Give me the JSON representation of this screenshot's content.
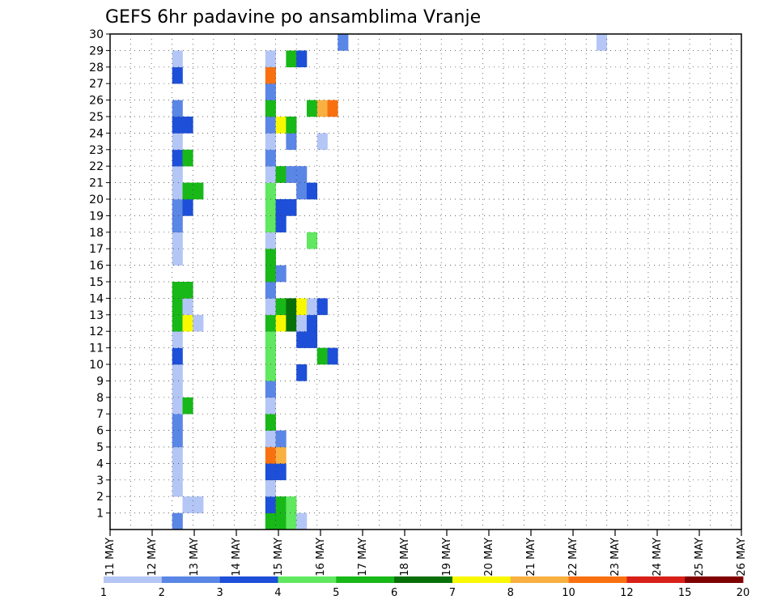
{
  "chart_data": {
    "type": "heatmap",
    "title": "GEFS 6hr padavine po ansamblima Vranje",
    "xlabel": "",
    "ylabel": "",
    "x_tick_labels": [
      "11 MAY",
      "12 MAY",
      "13 MAY",
      "14 MAY",
      "15 MAY",
      "16 MAY",
      "17 MAY",
      "18 MAY",
      "19 MAY",
      "20 MAY",
      "21 MAY",
      "22 MAY",
      "23 MAY",
      "24 MAY",
      "25 MAY",
      "26 MAY"
    ],
    "y_tick_labels": [
      "1",
      "2",
      "3",
      "4",
      "5",
      "6",
      "7",
      "8",
      "9",
      "10",
      "11",
      "12",
      "13",
      "14",
      "15",
      "16",
      "17",
      "18",
      "19",
      "20",
      "21",
      "22",
      "23",
      "24",
      "25",
      "26",
      "27",
      "28",
      "29",
      "30"
    ],
    "ylim": [
      0,
      30
    ],
    "time_steps": 61,
    "grid": "dotted",
    "legend": {
      "placement": "bottom",
      "labels": [
        "1",
        "2",
        "3",
        "4",
        "5",
        "6",
        "7",
        "8",
        "10",
        "12",
        "15",
        "20"
      ],
      "colors": [
        "#b4c6f5",
        "#5a86e6",
        "#1d4fd8",
        "#60e860",
        "#18b818",
        "#087008",
        "#f8f800",
        "#f8b040",
        "#f87010",
        "#d82018",
        "#800000"
      ]
    },
    "rows": {
      "30": [
        [
          22,
          2
        ],
        [
          47,
          1
        ]
      ],
      "29": [
        [
          6,
          1
        ],
        [
          15,
          1
        ],
        [
          17,
          5
        ],
        [
          18,
          3
        ]
      ],
      "28": [
        [
          6,
          3
        ],
        [
          15,
          9
        ]
      ],
      "27": [
        [
          15,
          2
        ]
      ],
      "26": [
        [
          6,
          2
        ],
        [
          15,
          5
        ],
        [
          19,
          5
        ],
        [
          20,
          8
        ],
        [
          21,
          9
        ]
      ],
      "25": [
        [
          6,
          3
        ],
        [
          7,
          3
        ],
        [
          15,
          2
        ],
        [
          16,
          7
        ],
        [
          17,
          5
        ]
      ],
      "24": [
        [
          6,
          1
        ],
        [
          15,
          1
        ],
        [
          17,
          2
        ],
        [
          20,
          1
        ]
      ],
      "23": [
        [
          6,
          3
        ],
        [
          7,
          5
        ],
        [
          15,
          2
        ]
      ],
      "22": [
        [
          6,
          1
        ],
        [
          15,
          1
        ],
        [
          16,
          5
        ],
        [
          17,
          2
        ],
        [
          18,
          2
        ]
      ],
      "21": [
        [
          6,
          1
        ],
        [
          7,
          5
        ],
        [
          8,
          5
        ],
        [
          15,
          4
        ],
        [
          18,
          2
        ],
        [
          19,
          3
        ]
      ],
      "20": [
        [
          6,
          2
        ],
        [
          7,
          3
        ],
        [
          15,
          4
        ],
        [
          16,
          3
        ],
        [
          17,
          3
        ]
      ],
      "19": [
        [
          6,
          2
        ],
        [
          15,
          4
        ],
        [
          16,
          3
        ]
      ],
      "18": [
        [
          6,
          1
        ],
        [
          15,
          1
        ],
        [
          19,
          4
        ]
      ],
      "17": [
        [
          6,
          1
        ],
        [
          15,
          5
        ]
      ],
      "16": [
        [
          15,
          5
        ],
        [
          16,
          2
        ]
      ],
      "15": [
        [
          6,
          5
        ],
        [
          7,
          5
        ],
        [
          15,
          2
        ]
      ],
      "14": [
        [
          6,
          5
        ],
        [
          7,
          1
        ],
        [
          15,
          1
        ],
        [
          16,
          5
        ],
        [
          17,
          6
        ],
        [
          18,
          7
        ],
        [
          19,
          1
        ],
        [
          20,
          3
        ]
      ],
      "13": [
        [
          6,
          5
        ],
        [
          7,
          7
        ],
        [
          8,
          1
        ],
        [
          15,
          5
        ],
        [
          16,
          7
        ],
        [
          17,
          6
        ],
        [
          18,
          1
        ],
        [
          19,
          3
        ]
      ],
      "12": [
        [
          6,
          1
        ],
        [
          15,
          4
        ],
        [
          18,
          3
        ],
        [
          19,
          3
        ]
      ],
      "11": [
        [
          6,
          3
        ],
        [
          15,
          4
        ],
        [
          20,
          5
        ],
        [
          21,
          3
        ]
      ],
      "10": [
        [
          6,
          1
        ],
        [
          15,
          4
        ],
        [
          18,
          3
        ]
      ],
      "9": [
        [
          6,
          1
        ],
        [
          15,
          2
        ]
      ],
      "8": [
        [
          6,
          1
        ],
        [
          7,
          5
        ],
        [
          15,
          1
        ]
      ],
      "7": [
        [
          6,
          2
        ],
        [
          15,
          5
        ]
      ],
      "6": [
        [
          6,
          2
        ],
        [
          15,
          1
        ],
        [
          16,
          2
        ]
      ],
      "5": [
        [
          6,
          1
        ],
        [
          15,
          9
        ],
        [
          16,
          8
        ]
      ],
      "4": [
        [
          6,
          1
        ],
        [
          15,
          3
        ],
        [
          16,
          3
        ]
      ],
      "3": [
        [
          6,
          1
        ],
        [
          15,
          1
        ]
      ],
      "2": [
        [
          7,
          1
        ],
        [
          8,
          1
        ],
        [
          15,
          3
        ],
        [
          16,
          5
        ],
        [
          17,
          4
        ]
      ],
      "1": [
        [
          6,
          2
        ],
        [
          15,
          5
        ],
        [
          16,
          5
        ],
        [
          17,
          4
        ],
        [
          18,
          1
        ]
      ]
    }
  }
}
